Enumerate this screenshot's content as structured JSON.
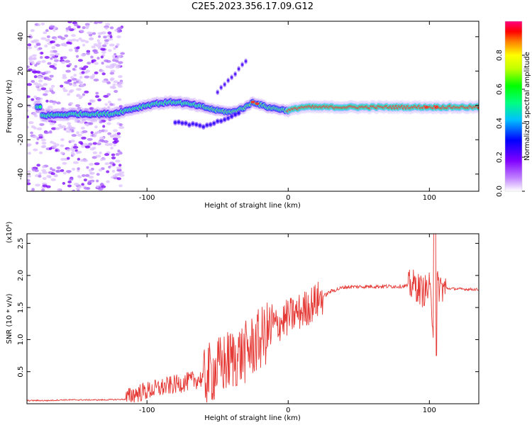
{
  "title": "C2E5.2023.356.17.09.G12",
  "colors": {
    "snr_line": "#e53935",
    "background": "#ffffff",
    "axis": "#000000"
  },
  "chart_data": [
    {
      "type": "heatmap",
      "xlabel": "Height of straight line (km)",
      "ylabel": "Frequency (Hz)",
      "xlim": [
        -185,
        135
      ],
      "ylim": [
        -50,
        49
      ],
      "xticks": [
        -100,
        0,
        100
      ],
      "yticks": [
        -40,
        -20,
        0,
        20,
        40
      ],
      "colorbar": {
        "label": "Normalized spectral amplitude",
        "range": [
          0,
          1
        ],
        "ticks": [
          "0.0",
          "0.2",
          "0.4",
          "0.6",
          "0.8"
        ],
        "colormap": [
          "#ffffff",
          "#8000ff",
          "#0000ff",
          "#00ffff",
          "#00ff00",
          "#ffff00",
          "#ff8000",
          "#ff0000",
          "#ff0080"
        ]
      },
      "main_track": [
        {
          "x": -175,
          "y": -6
        },
        {
          "x": -150,
          "y": -5
        },
        {
          "x": -125,
          "y": -5
        },
        {
          "x": -110,
          "y": -2
        },
        {
          "x": -95,
          "y": 1
        },
        {
          "x": -80,
          "y": 2
        },
        {
          "x": -65,
          "y": 0
        },
        {
          "x": -50,
          "y": -3
        },
        {
          "x": -40,
          "y": -4
        },
        {
          "x": -30,
          "y": -1
        },
        {
          "x": -25,
          "y": 2
        },
        {
          "x": -15,
          "y": -1
        },
        {
          "x": 0,
          "y": -3
        },
        {
          "x": 10,
          "y": -1
        },
        {
          "x": 50,
          "y": -1
        },
        {
          "x": 100,
          "y": -1
        },
        {
          "x": 135,
          "y": -1
        }
      ],
      "secondary_track": [
        {
          "x": -80,
          "y": -10
        },
        {
          "x": -60,
          "y": -12
        },
        {
          "x": -45,
          "y": -8
        },
        {
          "x": -35,
          "y": -5
        }
      ],
      "upper_track": [
        {
          "x": -50,
          "y": 8
        },
        {
          "x": -40,
          "y": 16
        },
        {
          "x": -30,
          "y": 26
        }
      ]
    },
    {
      "type": "line",
      "xlabel": "Height of straight line (km)",
      "ylabel": "SNR (10 * v/v)",
      "ylabel_multiplier": "(x10⁴)",
      "xlim": [
        -185,
        135
      ],
      "ylim": [
        0,
        2.65
      ],
      "xticks": [
        -100,
        0,
        100
      ],
      "yticks": [
        "0.5",
        "1.0",
        "1.5",
        "2.0",
        "2.5"
      ],
      "ytick_values": [
        0.5,
        1.0,
        1.5,
        2.0,
        2.5
      ],
      "series": [
        {
          "x": [
            -185,
            -170,
            -160,
            -150,
            -130,
            -115,
            -110,
            -100,
            -90,
            -80,
            -70,
            -60,
            -50,
            -40,
            -30,
            -20,
            -10,
            0,
            10,
            20,
            30,
            40,
            60,
            80,
            90,
            95,
            100,
            103,
            105,
            110,
            120,
            135
          ],
          "y": [
            0.05,
            0.05,
            0.06,
            0.06,
            0.06,
            0.07,
            0.15,
            0.2,
            0.25,
            0.3,
            0.35,
            0.4,
            0.55,
            0.7,
            0.8,
            1.0,
            1.2,
            1.35,
            1.45,
            1.6,
            1.75,
            1.82,
            1.83,
            1.83,
            1.85,
            1.75,
            1.8,
            1.2,
            1.85,
            1.8,
            1.79,
            1.78
          ]
        }
      ]
    }
  ]
}
